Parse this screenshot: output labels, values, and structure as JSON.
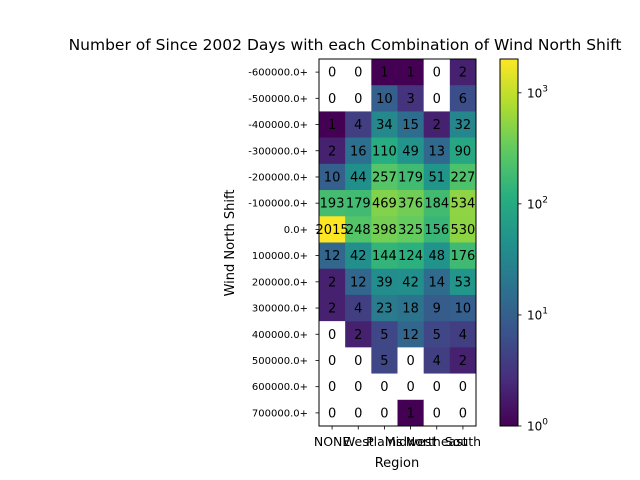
{
  "chart_data": {
    "type": "heatmap",
    "title": "Number of Since 2002 Days with each Combination of Wind North Shift",
    "xlabel": "Region",
    "ylabel": "Wind North Shift",
    "x_categories": [
      "NONE",
      "West",
      "Plains",
      "Midwest",
      "Northeast",
      "South"
    ],
    "y_categories": [
      "-600000.0+",
      "-500000.0+",
      "-400000.0+",
      "-300000.0+",
      "-200000.0+",
      "-100000.0+",
      "0.0+",
      "100000.0+",
      "200000.0+",
      "300000.0+",
      "400000.0+",
      "500000.0+",
      "600000.0+",
      "700000.0+"
    ],
    "values": [
      [
        0,
        0,
        1,
        1,
        0,
        2
      ],
      [
        0,
        0,
        10,
        3,
        0,
        6
      ],
      [
        1,
        4,
        34,
        15,
        2,
        32
      ],
      [
        2,
        16,
        110,
        49,
        13,
        90
      ],
      [
        10,
        44,
        257,
        179,
        51,
        227
      ],
      [
        193,
        179,
        469,
        376,
        184,
        534
      ],
      [
        2015,
        248,
        398,
        325,
        156,
        530
      ],
      [
        12,
        42,
        144,
        124,
        48,
        176
      ],
      [
        2,
        12,
        39,
        42,
        14,
        53
      ],
      [
        2,
        4,
        23,
        18,
        9,
        10
      ],
      [
        0,
        2,
        5,
        12,
        5,
        4
      ],
      [
        0,
        0,
        5,
        0,
        4,
        2
      ],
      [
        0,
        0,
        0,
        0,
        0,
        0
      ],
      [
        0,
        0,
        0,
        1,
        0,
        0
      ]
    ],
    "colormap": "viridis",
    "color_scale": "log",
    "color_range": [
      1,
      2015
    ],
    "zero_color": "#ffffff",
    "colorbar": {
      "ticks": [
        {
          "base": "10",
          "exp": "0",
          "value": 1
        },
        {
          "base": "10",
          "exp": "1",
          "value": 10
        },
        {
          "base": "10",
          "exp": "2",
          "value": 100
        },
        {
          "base": "10",
          "exp": "3",
          "value": 1000
        }
      ]
    }
  }
}
